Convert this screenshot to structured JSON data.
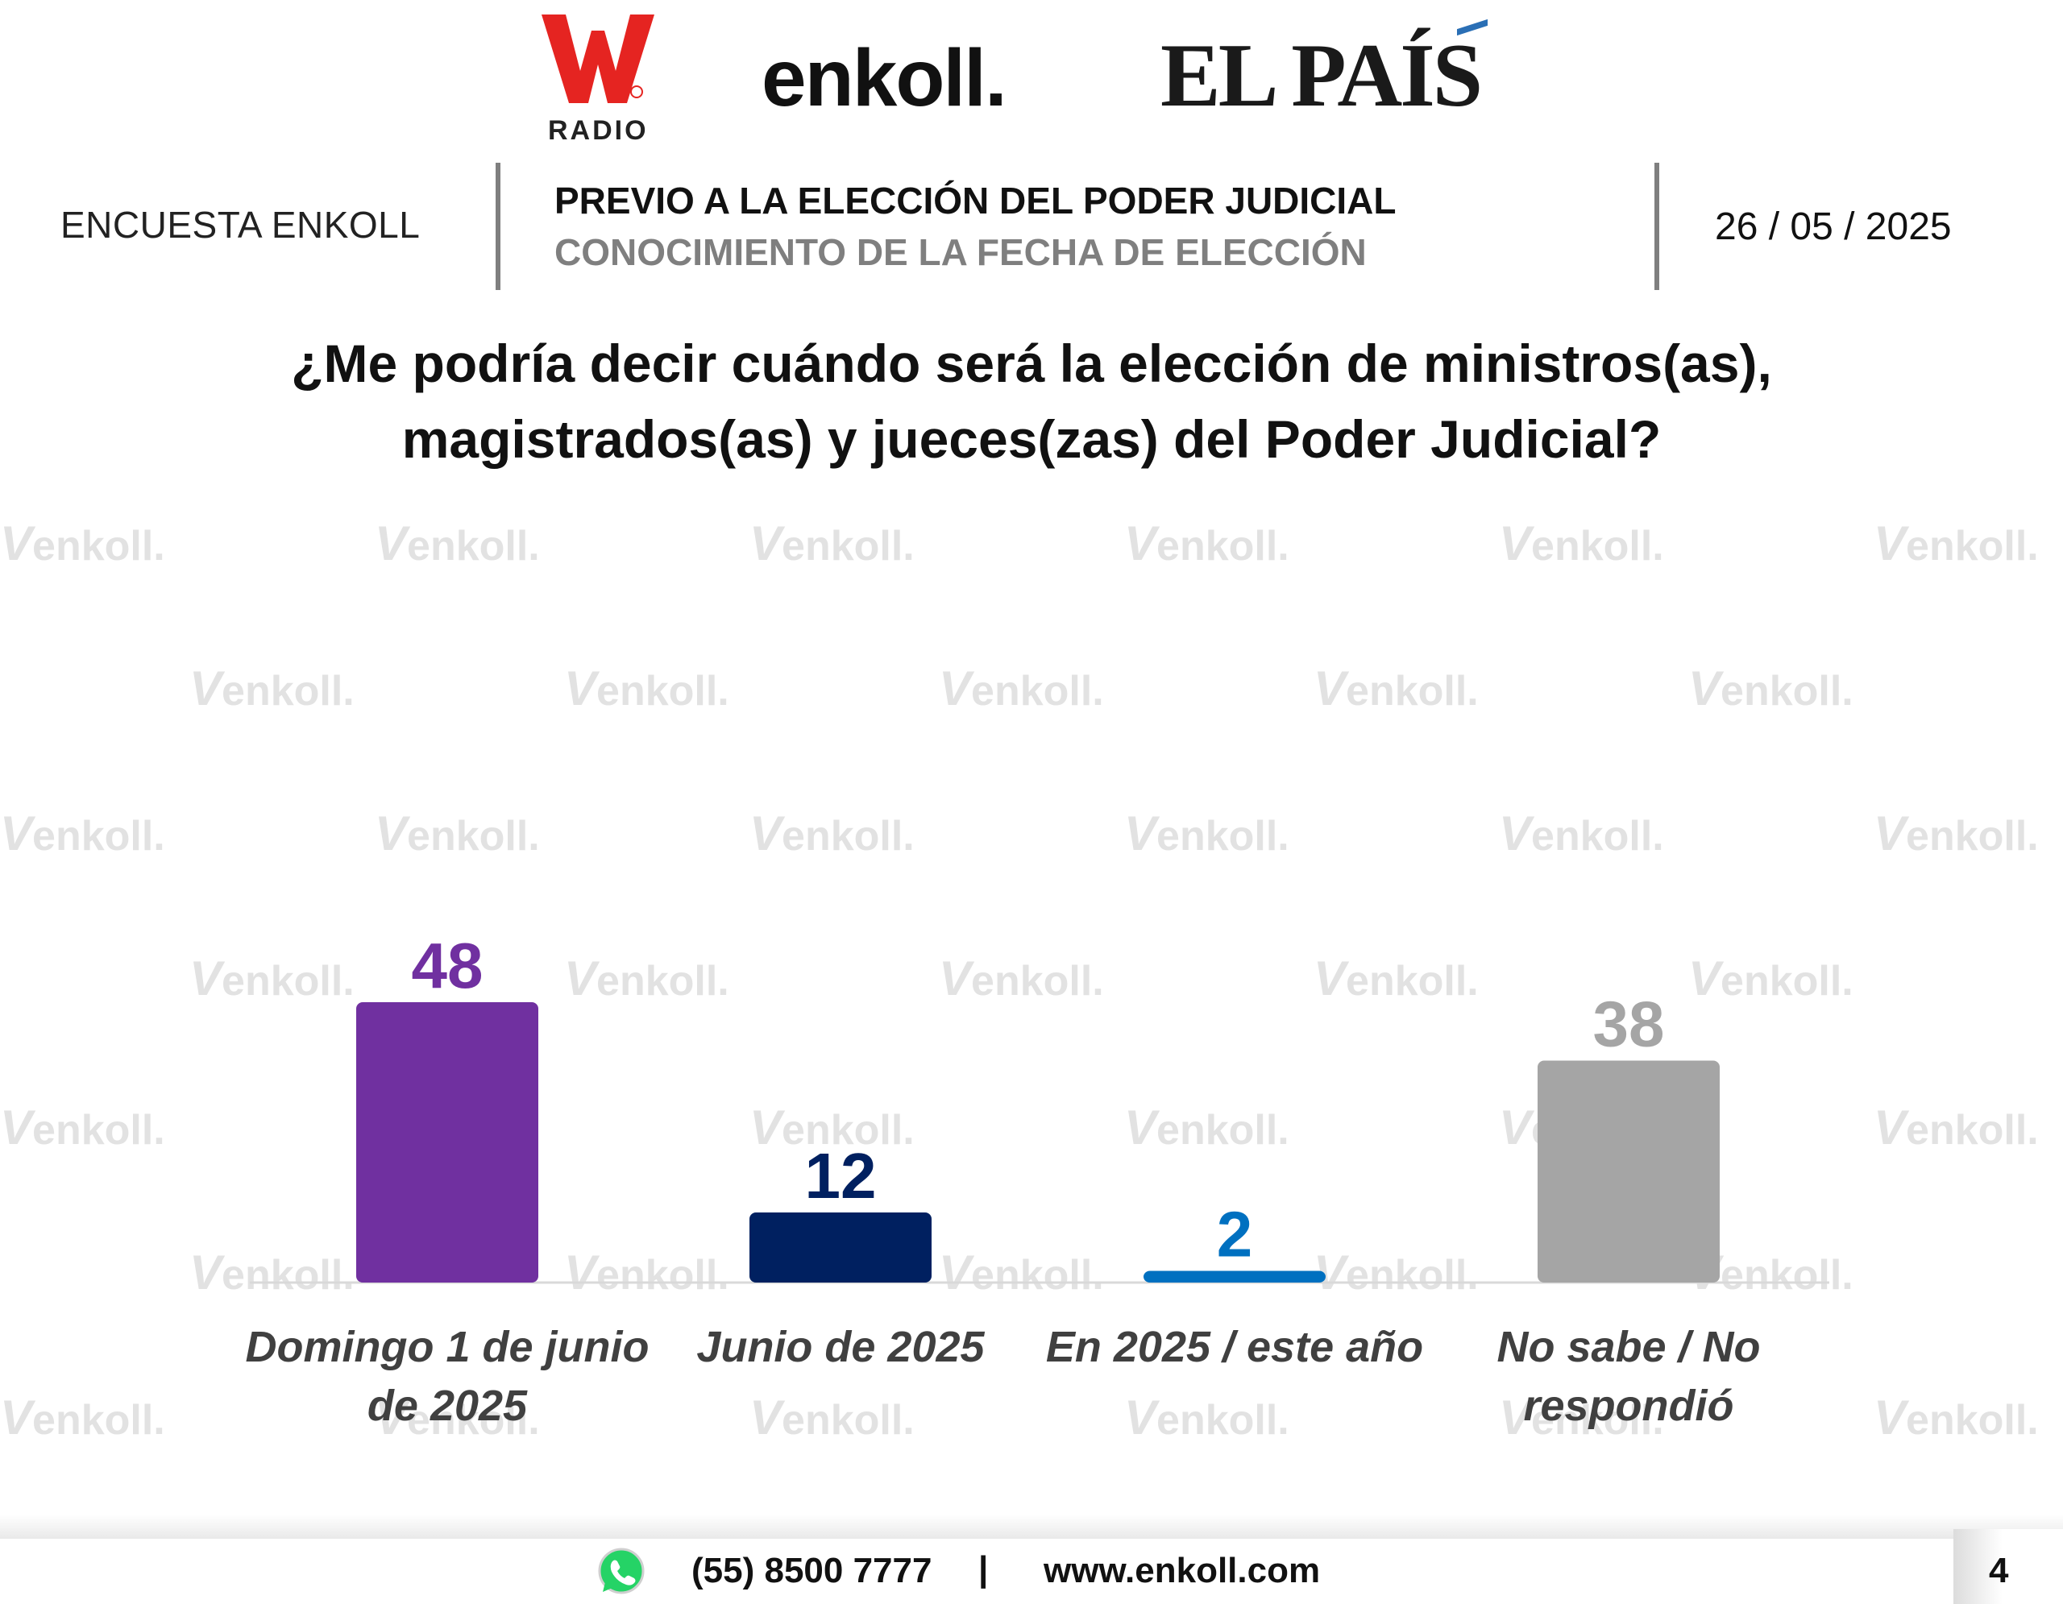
{
  "logos": {
    "w_radio": {
      "mark": "W",
      "sub": "RADIO"
    },
    "enkoll": "enkoll.",
    "el_pais": "EL PAÍS"
  },
  "header": {
    "left_label": "ENCUESTA ENKOLL",
    "title": "PREVIO A LA ELECCIÓN DEL PODER JUDICIAL",
    "subtitle": "CONOCIMIENTO DE LA FECHA DE ELECCIÓN",
    "date": "26 / 05 / 2025"
  },
  "question": {
    "line1": "¿Me podría decir cuándo será la elección de ministros(as),",
    "line2": "magistrados(as) y jueces(zas) del Poder Judicial?"
  },
  "watermark_text": "enkoll.",
  "chart_data": {
    "type": "bar",
    "categories": [
      [
        "Domingo 1 de junio",
        "de 2025"
      ],
      [
        "Junio de 2025"
      ],
      [
        "En 2025 / este año"
      ],
      [
        "No sabe / No",
        "respondió"
      ]
    ],
    "values": [
      48,
      12,
      2,
      38
    ],
    "colors": [
      "#7030a0",
      "#002060",
      "#0070c0",
      "#a5a5a5"
    ],
    "ylim": [
      0,
      50
    ],
    "grid": false,
    "legend": "none"
  },
  "footer": {
    "icon": "whatsapp-icon",
    "phone": "(55) 8500 7777",
    "separator": "|",
    "website": "www.enkoll.com",
    "page_number": "4"
  }
}
